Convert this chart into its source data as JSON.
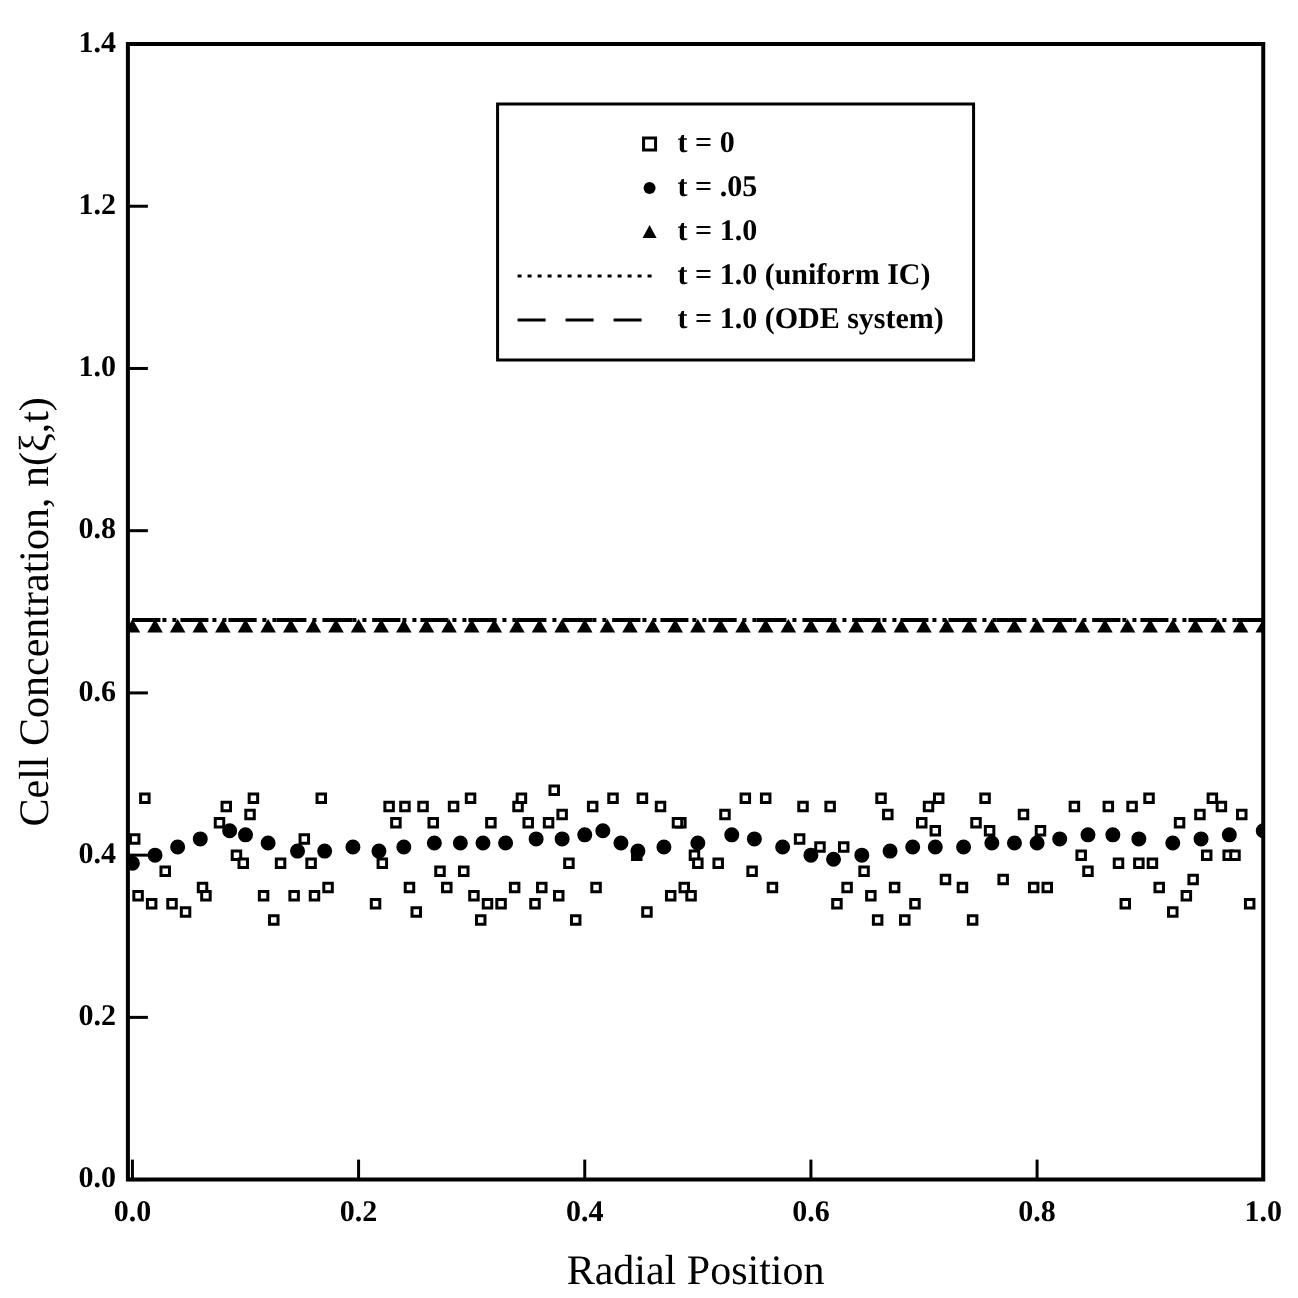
{
  "chart_data": {
    "type": "scatter",
    "xlabel": "Radial Position",
    "ylabel": "Cell Concentration, n(ξ,t)",
    "xlim": [
      -0.004,
      1.0
    ],
    "ylim": [
      0,
      1.4
    ],
    "xticks": [
      {
        "value": 0,
        "label": "0.0"
      },
      {
        "value": 0.2,
        "label": "0.2"
      },
      {
        "value": 0.4,
        "label": "0.4"
      },
      {
        "value": 0.6,
        "label": "0.6"
      },
      {
        "value": 0.8,
        "label": "0.8"
      },
      {
        "value": 1,
        "label": "1.0"
      }
    ],
    "yticks": [
      {
        "value": 0,
        "label": "0.0"
      },
      {
        "value": 0.2,
        "label": "0.2"
      },
      {
        "value": 0.4,
        "label": "0.4"
      },
      {
        "value": 0.6,
        "label": "0.6"
      },
      {
        "value": 0.8,
        "label": "0.8"
      },
      {
        "value": 1,
        "label": "1.0"
      },
      {
        "value": 1.2,
        "label": "1.2"
      },
      {
        "value": 1.4,
        "label": "1.4"
      }
    ],
    "grid": false,
    "legend": "top",
    "series": [
      {
        "name": "t = 0",
        "type": "scatter",
        "marker": "square",
        "color": "#000000",
        "x": [
          0.011,
          0.002,
          0.005,
          0.017,
          0.029,
          0.035,
          0.047,
          0.062,
          0.065,
          0.077,
          0.083,
          0.092,
          0.098,
          0.104,
          0.107,
          0.116,
          0.125,
          0.131,
          0.143,
          0.152,
          0.158,
          0.161,
          0.167,
          0.173,
          0.215,
          0.221,
          0.227,
          0.233,
          0.241,
          0.245,
          0.251,
          0.257,
          0.266,
          0.272,
          0.278,
          0.284,
          0.293,
          0.299,
          0.302,
          0.308,
          0.314,
          0.317,
          0.326,
          0.338,
          0.341,
          0.344,
          0.35,
          0.356,
          0.362,
          0.368,
          0.373,
          0.377,
          0.38,
          0.386,
          0.392,
          0.407,
          0.41,
          0.425,
          0.446,
          0.451,
          0.455,
          0.467,
          0.476,
          0.485,
          0.488,
          0.497,
          0.482,
          0.494,
          0.5,
          0.518,
          0.524,
          0.542,
          0.548,
          0.56,
          0.566,
          0.59,
          0.593,
          0.608,
          0.617,
          0.623,
          0.629,
          0.632,
          0.647,
          0.653,
          0.659,
          0.662,
          0.668,
          0.674,
          0.683,
          0.692,
          0.698,
          0.704,
          0.71,
          0.713,
          0.719,
          0.734,
          0.743,
          0.746,
          0.754,
          0.758,
          0.77,
          0.788,
          0.797,
          0.803,
          0.809,
          0.833,
          0.839,
          0.845,
          0.863,
          0.872,
          0.878,
          0.884,
          0.89,
          0.899,
          0.902,
          0.908,
          0.92,
          0.926,
          0.932,
          0.938,
          0.944,
          0.95,
          0.955,
          0.963,
          0.969,
          0.975,
          0.981,
          0.988
        ],
        "values": [
          0.47,
          0.42,
          0.35,
          0.34,
          0.38,
          0.34,
          0.33,
          0.36,
          0.35,
          0.44,
          0.46,
          0.4,
          0.39,
          0.45,
          0.47,
          0.35,
          0.32,
          0.39,
          0.35,
          0.42,
          0.39,
          0.35,
          0.47,
          0.36,
          0.34,
          0.39,
          0.46,
          0.44,
          0.46,
          0.36,
          0.33,
          0.46,
          0.44,
          0.38,
          0.36,
          0.46,
          0.38,
          0.47,
          0.35,
          0.32,
          0.34,
          0.44,
          0.34,
          0.36,
          0.46,
          0.47,
          0.44,
          0.34,
          0.36,
          0.44,
          0.48,
          0.35,
          0.45,
          0.39,
          0.32,
          0.46,
          0.36,
          0.47,
          0.4,
          0.47,
          0.33,
          0.46,
          0.35,
          0.44,
          0.36,
          0.4,
          0.44,
          0.35,
          0.39,
          0.39,
          0.45,
          0.47,
          0.38,
          0.47,
          0.36,
          0.42,
          0.46,
          0.41,
          0.46,
          0.34,
          0.41,
          0.36,
          0.38,
          0.35,
          0.32,
          0.47,
          0.45,
          0.36,
          0.32,
          0.34,
          0.44,
          0.46,
          0.43,
          0.47,
          0.37,
          0.36,
          0.32,
          0.44,
          0.47,
          0.43,
          0.37,
          0.45,
          0.36,
          0.43,
          0.36,
          0.46,
          0.4,
          0.38,
          0.46,
          0.39,
          0.34,
          0.46,
          0.39,
          0.47,
          0.39,
          0.36,
          0.33,
          0.44,
          0.35,
          0.37,
          0.45,
          0.4,
          0.47,
          0.46,
          0.4,
          0.4,
          0.45,
          0.34
        ]
      },
      {
        "name": "t = .05",
        "type": "scatter",
        "marker": "circle",
        "color": "#000000",
        "x": [
          0,
          0.02,
          0.04,
          0.06,
          0.086,
          0.1,
          0.12,
          0.146,
          0.17,
          0.195,
          0.218,
          0.24,
          0.267,
          0.29,
          0.31,
          0.33,
          0.357,
          0.38,
          0.4,
          0.416,
          0.432,
          0.447,
          0.47,
          0.5,
          0.53,
          0.55,
          0.575,
          0.6,
          0.62,
          0.645,
          0.67,
          0.69,
          0.71,
          0.735,
          0.76,
          0.78,
          0.8,
          0.82,
          0.845,
          0.867,
          0.89,
          0.92,
          0.945,
          0.97,
          1.0
        ],
        "values": [
          0.39,
          0.4,
          0.41,
          0.42,
          0.43,
          0.425,
          0.415,
          0.405,
          0.405,
          0.41,
          0.405,
          0.41,
          0.415,
          0.415,
          0.415,
          0.415,
          0.42,
          0.42,
          0.425,
          0.43,
          0.415,
          0.405,
          0.41,
          0.415,
          0.425,
          0.42,
          0.41,
          0.4,
          0.395,
          0.4,
          0.405,
          0.41,
          0.41,
          0.41,
          0.415,
          0.415,
          0.415,
          0.42,
          0.425,
          0.425,
          0.42,
          0.415,
          0.42,
          0.425,
          0.43
        ]
      },
      {
        "name": "t = 1.0",
        "type": "scatter",
        "marker": "triangle",
        "color": "#000000",
        "x": [
          0,
          0.02,
          0.04,
          0.06,
          0.08,
          0.1,
          0.12,
          0.14,
          0.16,
          0.18,
          0.2,
          0.22,
          0.24,
          0.26,
          0.28,
          0.3,
          0.32,
          0.34,
          0.36,
          0.38,
          0.4,
          0.42,
          0.44,
          0.46,
          0.48,
          0.5,
          0.52,
          0.54,
          0.56,
          0.58,
          0.6,
          0.62,
          0.64,
          0.66,
          0.68,
          0.7,
          0.72,
          0.74,
          0.76,
          0.78,
          0.8,
          0.82,
          0.84,
          0.86,
          0.88,
          0.9,
          0.92,
          0.94,
          0.96,
          0.98,
          1.0
        ],
        "values": [
          0.68,
          0.68,
          0.68,
          0.68,
          0.68,
          0.68,
          0.68,
          0.68,
          0.68,
          0.68,
          0.68,
          0.68,
          0.68,
          0.68,
          0.68,
          0.68,
          0.68,
          0.68,
          0.68,
          0.68,
          0.68,
          0.68,
          0.68,
          0.68,
          0.68,
          0.68,
          0.68,
          0.68,
          0.68,
          0.68,
          0.68,
          0.68,
          0.68,
          0.68,
          0.68,
          0.68,
          0.68,
          0.68,
          0.68,
          0.68,
          0.68,
          0.68,
          0.68,
          0.68,
          0.68,
          0.68,
          0.68,
          0.68,
          0.68,
          0.68,
          0.68
        ]
      },
      {
        "name": "t = 1.0 (uniform IC)",
        "type": "line",
        "marker": "none",
        "line_style": "dotted",
        "color": "#000000",
        "x": [
          0,
          1.0
        ],
        "values": [
          0.69,
          0.69
        ]
      },
      {
        "name": "t = 1.0 (ODE system)",
        "type": "line",
        "marker": "none",
        "line_style": "dashed",
        "color": "#000000",
        "x": [
          0,
          1.0
        ],
        "values": [
          0.69,
          0.69
        ]
      }
    ]
  }
}
